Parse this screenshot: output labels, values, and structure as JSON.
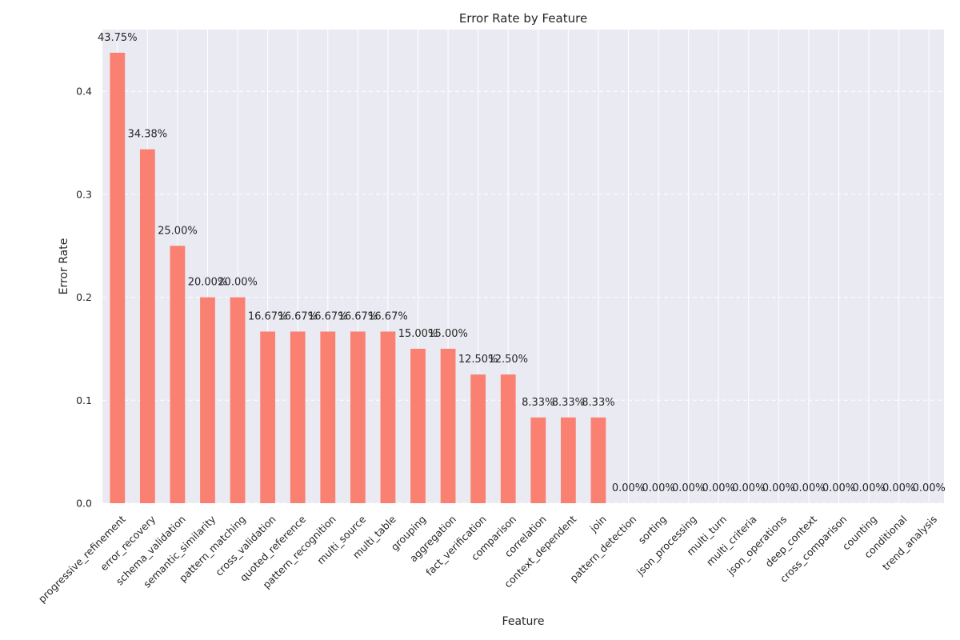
{
  "chart_data": {
    "type": "bar",
    "title": "Error Rate by Feature",
    "xlabel": "Feature",
    "ylabel": "Error Rate",
    "ylim": [
      0,
      0.46
    ],
    "yticks": [
      0.0,
      0.1,
      0.2,
      0.3,
      0.4
    ],
    "ytick_labels": [
      "0.0",
      "0.1",
      "0.2",
      "0.3",
      "0.4"
    ],
    "grid": true,
    "bar_color": "#fa8072",
    "background_color": "#eaeaf2",
    "categories": [
      "progressive_refinement",
      "error_recovery",
      "schema_validation",
      "semantic_similarity",
      "pattern_matching",
      "cross_validation",
      "quoted_reference",
      "pattern_recognition",
      "multi_source",
      "multi_table",
      "grouping",
      "aggregation",
      "fact_verification",
      "comparison",
      "correlation",
      "context_dependent",
      "join",
      "pattern_detection",
      "sorting",
      "json_processing",
      "multi_turn",
      "multi_criteria",
      "json_operations",
      "deep_context",
      "cross_comparison",
      "counting",
      "conditional",
      "trend_analysis"
    ],
    "values": [
      0.4375,
      0.34375,
      0.25,
      0.2,
      0.2,
      0.1667,
      0.1667,
      0.1667,
      0.1667,
      0.1667,
      0.15,
      0.15,
      0.125,
      0.125,
      0.0833,
      0.0833,
      0.0833,
      0,
      0,
      0,
      0,
      0,
      0,
      0,
      0,
      0,
      0,
      0
    ],
    "data_labels": [
      "43.75%",
      "34.38%",
      "25.00%",
      "20.00%",
      "20.00%",
      "16.67%",
      "16.67%",
      "16.67%",
      "16.67%",
      "16.67%",
      "15.00%",
      "15.00%",
      "12.50%",
      "12.50%",
      "8.33%",
      "8.33%",
      "8.33%",
      "0.00%",
      "0.00%",
      "0.00%",
      "0.00%",
      "0.00%",
      "0.00%",
      "0.00%",
      "0.00%",
      "0.00%",
      "0.00%",
      "0.00%"
    ]
  }
}
